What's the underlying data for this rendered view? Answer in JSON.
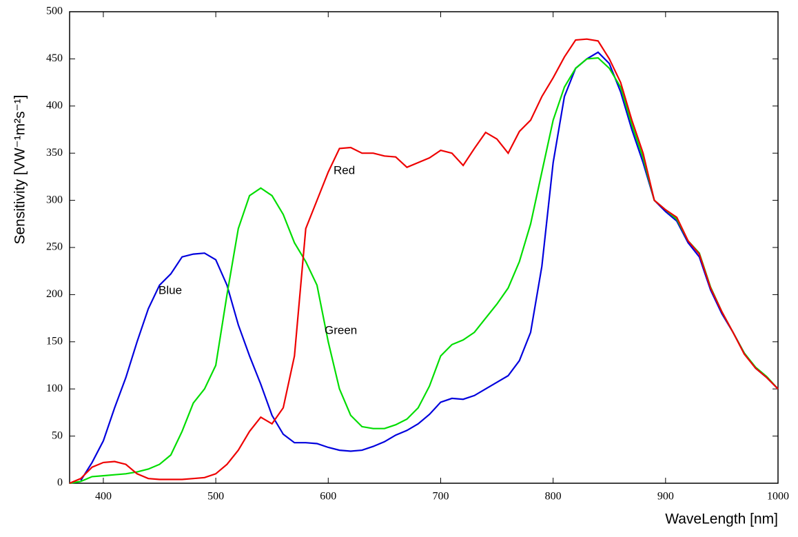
{
  "chart_data": {
    "type": "line",
    "xlabel": "WaveLength [nm]",
    "ylabel": "Sensitivity [VW⁻¹m²s⁻¹]",
    "x": [
      370,
      380,
      390,
      400,
      410,
      420,
      430,
      440,
      450,
      460,
      470,
      480,
      490,
      500,
      510,
      520,
      530,
      540,
      550,
      560,
      570,
      580,
      590,
      600,
      610,
      620,
      630,
      640,
      650,
      660,
      670,
      680,
      690,
      700,
      710,
      720,
      730,
      740,
      750,
      760,
      770,
      780,
      790,
      800,
      810,
      820,
      830,
      840,
      850,
      860,
      870,
      880,
      890,
      900,
      910,
      920,
      930,
      940,
      950,
      960,
      970,
      980,
      990,
      1000
    ],
    "series": [
      {
        "name": "Blue",
        "color": "#0000dd",
        "values": [
          null,
          3,
          22,
          45,
          80,
          112,
          150,
          185,
          210,
          222,
          240,
          243,
          244,
          237,
          210,
          168,
          135,
          105,
          72,
          52,
          43,
          43,
          42,
          38,
          35,
          34,
          35,
          39,
          44,
          51,
          56,
          63,
          73,
          86,
          90,
          89,
          93,
          100,
          107,
          114,
          130,
          160,
          230,
          340,
          410,
          440,
          450,
          457,
          445,
          415,
          375,
          340,
          300,
          288,
          278,
          255,
          240,
          205,
          180,
          160,
          138,
          122,
          112,
          100
        ]
      },
      {
        "name": "Green",
        "color": "#00dd00",
        "values": [
          0,
          2,
          7,
          8,
          9,
          10,
          12,
          15,
          20,
          30,
          55,
          85,
          100,
          125,
          200,
          270,
          305,
          313,
          305,
          285,
          255,
          235,
          210,
          150,
          100,
          72,
          60,
          58,
          58,
          62,
          68,
          80,
          103,
          135,
          147,
          152,
          160,
          175,
          190,
          207,
          235,
          275,
          330,
          385,
          420,
          440,
          450,
          451,
          440,
          420,
          380,
          345,
          300,
          290,
          280,
          257,
          244,
          208,
          182,
          160,
          138,
          123,
          113,
          100
        ]
      },
      {
        "name": "Red",
        "color": "#ee0000",
        "values": [
          0,
          5,
          17,
          22,
          23,
          20,
          10,
          5,
          4,
          4,
          4,
          5,
          6,
          10,
          20,
          35,
          55,
          70,
          63,
          80,
          135,
          270,
          300,
          330,
          355,
          356,
          350,
          350,
          347,
          346,
          335,
          340,
          345,
          353,
          350,
          337,
          355,
          372,
          365,
          350,
          373,
          385,
          410,
          430,
          452,
          470,
          471,
          469,
          450,
          425,
          385,
          350,
          300,
          290,
          282,
          257,
          243,
          207,
          182,
          160,
          137,
          122,
          112,
          100
        ]
      }
    ],
    "xlim": [
      370,
      1000
    ],
    "ylim": [
      0,
      500
    ],
    "xticks": [
      400,
      500,
      600,
      700,
      800,
      900,
      1000
    ],
    "yticks": [
      0,
      50,
      100,
      150,
      200,
      250,
      300,
      350,
      400,
      450,
      500
    ]
  }
}
